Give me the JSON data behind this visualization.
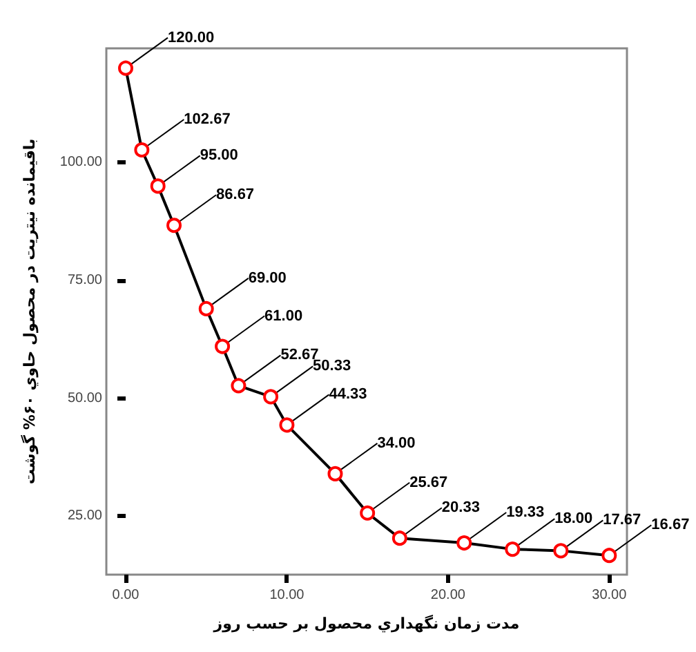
{
  "chart_data": {
    "type": "line",
    "xlabel": "مدت زمان نگهداري محصول بر حسب روز",
    "ylabel": "باقيمانده نيتريت در محصول حاوي ۶۰% گوشت",
    "x": [
      0,
      1,
      2,
      3,
      5,
      6,
      7,
      9,
      10,
      13,
      15,
      17,
      21,
      24,
      27,
      30
    ],
    "series": [
      {
        "color": "#000000",
        "values": [
          120,
          102.67,
          95,
          86.67,
          69,
          61,
          52.67,
          50.33,
          44.33,
          34,
          25.67,
          20.33,
          19.33,
          18,
          17.67,
          16.67
        ],
        "value_labels": [
          "120.00",
          "102.67",
          "95.00",
          "86.67",
          "69.00",
          "61.00",
          "52.67",
          "50.33",
          "44.33",
          "34.00",
          "25.67",
          "20.33",
          "19.33",
          "18.00",
          "17.67",
          "16.67"
        ],
        "colors": [
          "#ff0000",
          "#ff0000",
          "#ff0000",
          "#ff0000",
          "#ff0000",
          "#ff0000",
          "#ff0000",
          "#ff0000",
          "#ff0000",
          "#ff0000",
          "#ff0000",
          "#ff0000",
          "#ff0000",
          "#ff0000",
          "#ff0000",
          "#ff0000"
        ]
      }
    ],
    "marker": "circle",
    "grid": false,
    "xlim": [
      -1.2,
      31.1
    ],
    "ylim": [
      12.6,
      124.2
    ],
    "xticks": [
      {
        "value": 0,
        "label": "0.00"
      },
      {
        "value": 10,
        "label": "10.00"
      },
      {
        "value": 20,
        "label": "20.00"
      },
      {
        "value": 30,
        "label": "30.00"
      }
    ],
    "yticks": [
      {
        "value": 25,
        "label": "25.00"
      },
      {
        "value": 50,
        "label": "50.00"
      },
      {
        "value": 75,
        "label": "75.00"
      },
      {
        "value": 100,
        "label": "100.00"
      }
    ]
  }
}
